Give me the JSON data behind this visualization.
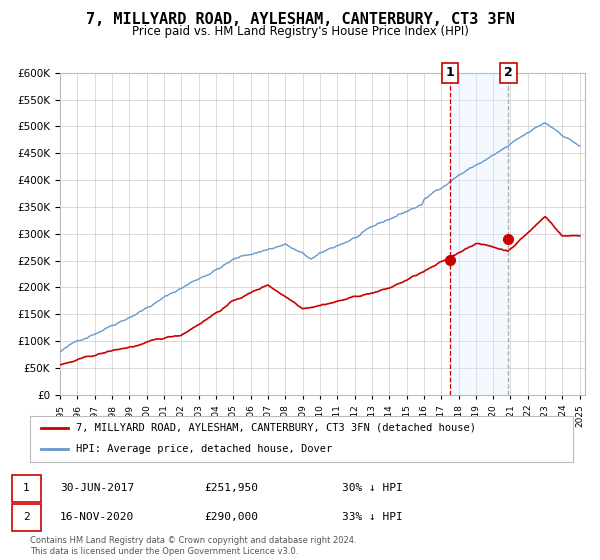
{
  "title": "7, MILLYARD ROAD, AYLESHAM, CANTERBURY, CT3 3FN",
  "subtitle": "Price paid vs. HM Land Registry's House Price Index (HPI)",
  "ylim": [
    0,
    600000
  ],
  "yticks": [
    0,
    50000,
    100000,
    150000,
    200000,
    250000,
    300000,
    350000,
    400000,
    450000,
    500000,
    550000,
    600000
  ],
  "xlim_start": 1995.0,
  "xlim_end": 2025.3,
  "sale1_date": 2017.496,
  "sale1_price": 251950,
  "sale2_date": 2020.879,
  "sale2_price": 290000,
  "red_color": "#cc0000",
  "blue_color": "#6699cc",
  "shade_color": "#ddeeff",
  "grid_color": "#cccccc",
  "background_color": "#ffffff",
  "legend_label_red": "7, MILLYARD ROAD, AYLESHAM, CANTERBURY, CT3 3FN (detached house)",
  "legend_label_blue": "HPI: Average price, detached house, Dover",
  "footer1": "Contains HM Land Registry data © Crown copyright and database right 2024.",
  "footer2": "This data is licensed under the Open Government Licence v3.0."
}
